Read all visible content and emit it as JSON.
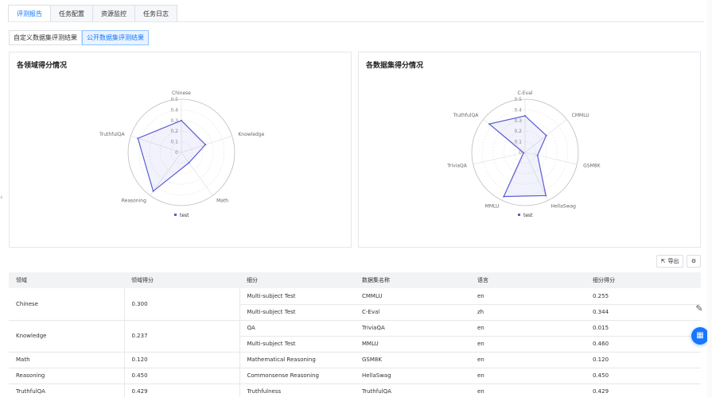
{
  "tabs": [
    "评测报告",
    "任务配置",
    "资源监控",
    "任务日志"
  ],
  "subtabs": [
    "自定义数据集评测结果",
    "公开数据集评测结果"
  ],
  "panels": {
    "left_title": "各领域得分情况",
    "right_title": "各数据集得分情况"
  },
  "chart_data": [
    {
      "type": "radar",
      "title": "各领域得分情况",
      "axes": [
        "Chinese",
        "Knowledge",
        "Math",
        "Reasoning",
        "TruthfulQA"
      ],
      "ticks": [
        "0",
        "0.1",
        "0.2",
        "0.3",
        "0.4",
        "0.5"
      ],
      "range": [
        0,
        0.5
      ],
      "series": [
        {
          "name": "test",
          "values": [
            0.3,
            0.237,
            0.12,
            0.45,
            0.429
          ]
        }
      ],
      "legend": "bottom"
    },
    {
      "type": "radar",
      "title": "各数据集得分情况",
      "axes": [
        "C-Eval",
        "CMMLU",
        "GSM8K",
        "HellaSwag",
        "MMLU",
        "TriviaQA",
        "TruthfulQA"
      ],
      "ticks": [
        "0",
        "0.1",
        "0.2",
        "0.3",
        "0.4",
        "0.5"
      ],
      "range": [
        0,
        0.5
      ],
      "series": [
        {
          "name": "test",
          "values": [
            0.344,
            0.255,
            0.12,
            0.45,
            0.46,
            0.015,
            0.429
          ]
        }
      ],
      "legend": "bottom"
    }
  ],
  "toolbar": {
    "export_label": "导出",
    "export_icon": "export-icon",
    "settings_icon": "gear-icon"
  },
  "table": {
    "headers": [
      "领域",
      "领域得分",
      "细分",
      "数据集名称",
      "语言",
      "细分得分"
    ],
    "groups": [
      {
        "domain": "Chinese",
        "score": "0.300",
        "rows": [
          {
            "sub": "Multi-subject Test",
            "dataset": "CMMLU",
            "lang": "en",
            "subscore": "0.255"
          },
          {
            "sub": "Multi-subject Test",
            "dataset": "C-Eval",
            "lang": "zh",
            "subscore": "0.344"
          }
        ]
      },
      {
        "domain": "Knowledge",
        "score": "0.237",
        "rows": [
          {
            "sub": "QA",
            "dataset": "TriviaQA",
            "lang": "en",
            "subscore": "0.015"
          },
          {
            "sub": "Multi-subject Test",
            "dataset": "MMLU",
            "lang": "en",
            "subscore": "0.460"
          }
        ]
      },
      {
        "domain": "Math",
        "score": "0.120",
        "rows": [
          {
            "sub": "Mathematical Reasoning",
            "dataset": "GSM8K",
            "lang": "en",
            "subscore": "0.120"
          }
        ]
      },
      {
        "domain": "Reasoning",
        "score": "0.450",
        "rows": [
          {
            "sub": "Commonsense Reasoning",
            "dataset": "HellaSwag",
            "lang": "en",
            "subscore": "0.450"
          }
        ]
      },
      {
        "domain": "TruthfulQA",
        "score": "0.429",
        "rows": [
          {
            "sub": "Truthfulness",
            "dataset": "TruthfulQA",
            "lang": "en",
            "subscore": "0.429"
          }
        ]
      }
    ]
  },
  "colors": {
    "accent": "#1677ff",
    "series": "#5b5bd6"
  }
}
